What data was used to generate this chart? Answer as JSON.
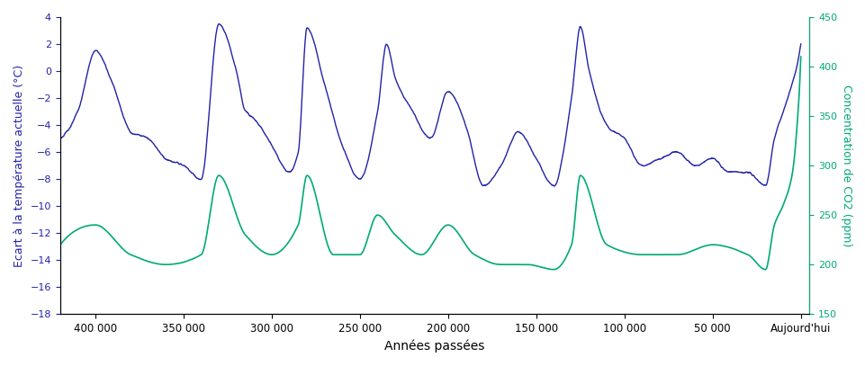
{
  "title": "",
  "xlabel": "Années passées",
  "ylabel_left": "Ecart à la température actuelle (°C)",
  "ylabel_right": "Concentration de CO2 (ppm)",
  "temp_color": "#2222AA",
  "co2_color": "#00AA77",
  "xlim": [
    420000,
    -5000
  ],
  "ylim_temp": [
    -18,
    4
  ],
  "ylim_co2": [
    150,
    450
  ],
  "yticks_temp": [
    -18,
    -16,
    -14,
    -12,
    -10,
    -8,
    -6,
    -4,
    -2,
    0,
    2,
    4
  ],
  "yticks_co2": [
    150,
    200,
    250,
    300,
    350,
    400,
    450
  ],
  "xticks": [
    400000,
    350000,
    300000,
    250000,
    200000,
    150000,
    100000,
    50000,
    0
  ],
  "xticklabels": [
    "400 000",
    "350 000",
    "300 000",
    "250 000",
    "200 000",
    "150 000",
    "100 000",
    "50 000",
    "Aujourd'hui"
  ],
  "linewidth_temp": 1.0,
  "linewidth_co2": 1.2
}
